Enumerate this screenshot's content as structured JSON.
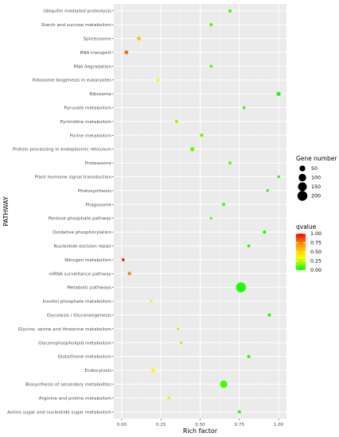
{
  "chart_data": {
    "type": "scatter",
    "xlabel": "Rich factor",
    "ylabel": "PATHWAY",
    "xlim": [
      -0.05,
      1.05
    ],
    "x_ticks": [
      "0.00",
      "0.25",
      "0.50",
      "0.75",
      "1.00"
    ],
    "x_tick_values": [
      0,
      0.25,
      0.5,
      0.75,
      1.0
    ],
    "grid": true,
    "legend_position": "right",
    "size_legend": {
      "title": "Gene number",
      "values": [
        50,
        100,
        150,
        200
      ]
    },
    "color_legend": {
      "title": "qvalue",
      "ticks": [
        "1.00",
        "0.75",
        "0.50",
        "0.25",
        "0.00"
      ],
      "tick_values": [
        1.0,
        0.75,
        0.5,
        0.25,
        0.0
      ],
      "colors": [
        "#ff0000",
        "#ffa500",
        "#ffff00",
        "#00ff00"
      ]
    },
    "points": [
      {
        "pathway": "Ubiquitin mediated proteolysis",
        "rich_factor": 0.69,
        "gene_number": 8,
        "qvalue": 0.08
      },
      {
        "pathway": "Starch and sucrose metabolism",
        "rich_factor": 0.57,
        "gene_number": 8,
        "qvalue": 0.1
      },
      {
        "pathway": "Spliceosome",
        "rich_factor": 0.11,
        "gene_number": 13,
        "qvalue": 0.55
      },
      {
        "pathway": "RNA transport",
        "rich_factor": 0.03,
        "gene_number": 14,
        "qvalue": 0.78
      },
      {
        "pathway": "RNA degradation",
        "rich_factor": 0.57,
        "gene_number": 6,
        "qvalue": 0.1
      },
      {
        "pathway": "Ribosome biogenesis in eukaryotes",
        "rich_factor": 0.23,
        "gene_number": 7,
        "qvalue": 0.35
      },
      {
        "pathway": "Ribosome",
        "rich_factor": 1.0,
        "gene_number": 18,
        "qvalue": 0.03
      },
      {
        "pathway": "Pyruvate metabolism",
        "rich_factor": 0.78,
        "gene_number": 4,
        "qvalue": 0.05
      },
      {
        "pathway": "Pyrimidine metabolism",
        "rich_factor": 0.35,
        "gene_number": 7,
        "qvalue": 0.2
      },
      {
        "pathway": "Purine metabolism",
        "rich_factor": 0.51,
        "gene_number": 10,
        "qvalue": 0.12
      },
      {
        "pathway": "Protein processing in endoplasmic reticulum",
        "rich_factor": 0.45,
        "gene_number": 20,
        "qvalue": 0.12
      },
      {
        "pathway": "Proteasome",
        "rich_factor": 0.69,
        "gene_number": 4,
        "qvalue": 0.07
      },
      {
        "pathway": "Plant hormone signal transduction",
        "rich_factor": 1.0,
        "gene_number": 3,
        "qvalue": 0.03
      },
      {
        "pathway": "Photosynthesis",
        "rich_factor": 0.93,
        "gene_number": 3,
        "qvalue": 0.04
      },
      {
        "pathway": "Phagosome",
        "rich_factor": 0.65,
        "gene_number": 7,
        "qvalue": 0.08
      },
      {
        "pathway": "Pentose phosphate pathway",
        "rich_factor": 0.57,
        "gene_number": 2,
        "qvalue": 0.1
      },
      {
        "pathway": "Oxidative phosphorylation",
        "rich_factor": 0.91,
        "gene_number": 8,
        "qvalue": 0.04
      },
      {
        "pathway": "Nucleotide excision repair",
        "rich_factor": 0.81,
        "gene_number": 5,
        "qvalue": 0.05
      },
      {
        "pathway": "Nitrogen metabolism",
        "rich_factor": 0.01,
        "gene_number": 4,
        "qvalue": 0.98
      },
      {
        "pathway": "mRNA surveillance pathway",
        "rich_factor": 0.05,
        "gene_number": 10,
        "qvalue": 0.72
      },
      {
        "pathway": "Metabolic pathways",
        "rich_factor": 0.76,
        "gene_number": 210,
        "qvalue": 0.04
      },
      {
        "pathway": "Inositol phosphate metabolism",
        "rich_factor": 0.19,
        "gene_number": 2,
        "qvalue": 0.38
      },
      {
        "pathway": "Glycolysis / Gluconeogenesis",
        "rich_factor": 0.94,
        "gene_number": 6,
        "qvalue": 0.04
      },
      {
        "pathway": "Glycine, serine and threonine metabolism",
        "rich_factor": 0.36,
        "gene_number": 2,
        "qvalue": 0.22
      },
      {
        "pathway": "Glycerophospholipid metabolism",
        "rich_factor": 0.38,
        "gene_number": 2,
        "qvalue": 0.2
      },
      {
        "pathway": "Glutathione metabolism",
        "rich_factor": 0.81,
        "gene_number": 8,
        "qvalue": 0.05
      },
      {
        "pathway": "Endocytosis",
        "rich_factor": 0.2,
        "gene_number": 15,
        "qvalue": 0.35
      },
      {
        "pathway": "Biosynthesis of secondary metabolites",
        "rich_factor": 0.65,
        "gene_number": 95,
        "qvalue": 0.08
      },
      {
        "pathway": "Arginine and proline metabolism",
        "rich_factor": 0.3,
        "gene_number": 6,
        "qvalue": 0.28
      },
      {
        "pathway": "Amino sugar and nucleotide sugar metabolism",
        "rich_factor": 0.75,
        "gene_number": 7,
        "qvalue": 0.06
      }
    ]
  }
}
